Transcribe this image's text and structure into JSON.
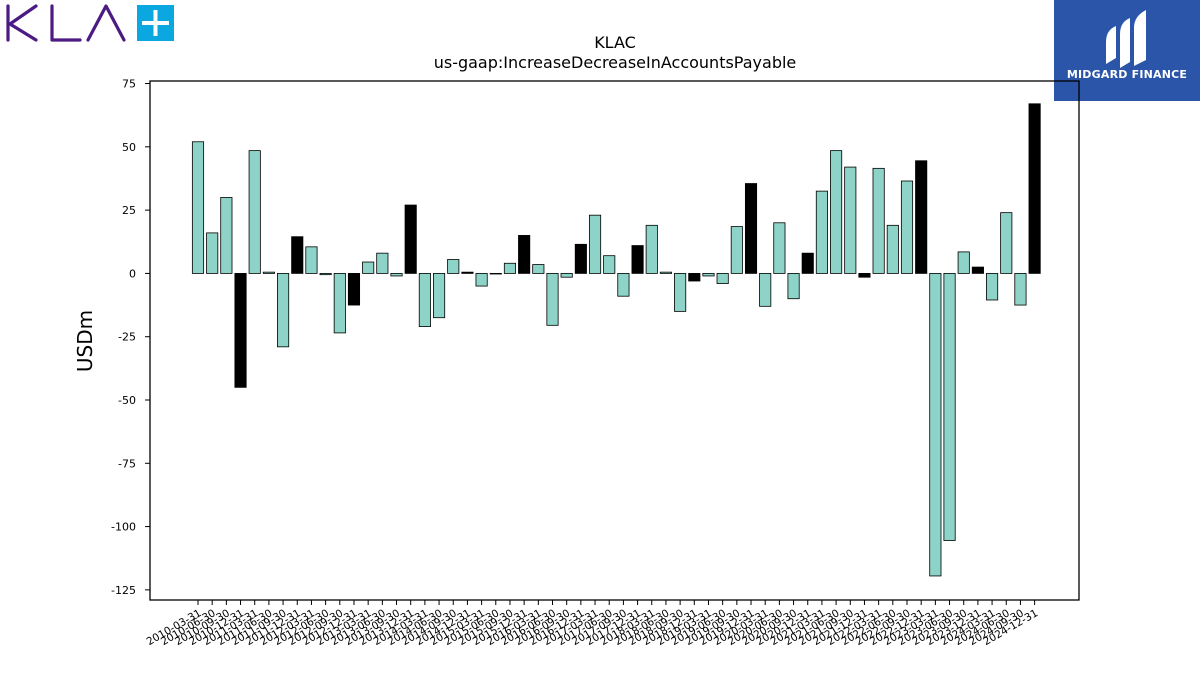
{
  "logos": {
    "left_brand": "KLA",
    "right_brand": "MIDGARD FINANCE",
    "kla_color": "#4b1a83",
    "kla_plus_color": "#0aa7e0",
    "midgard_bg": "#2b55a8"
  },
  "chart_data": {
    "type": "bar",
    "title": "KLAC",
    "subtitle": "us-gaap:IncreaseDecreaseInAccountsPayable",
    "xlabel": "",
    "ylabel": "USDm",
    "ylim": [
      -129,
      76
    ],
    "yticks": [
      75,
      50,
      25,
      0,
      -25,
      -50,
      -75,
      -100,
      -125
    ],
    "grid": false,
    "legend": "none",
    "colors": {
      "quarter": "#8dd3c7",
      "fiscal_year_end": "#000000"
    },
    "categories": [
      "2010-03-31",
      "2010-06-30",
      "2010-09-30",
      "2010-12-31",
      "2011-03-31",
      "2011-06-30",
      "2011-09-30",
      "2011-12-31",
      "2012-03-31",
      "2012-06-30",
      "2012-09-30",
      "2012-12-31",
      "2013-03-31",
      "2013-06-30",
      "2013-09-30",
      "2013-12-31",
      "2014-03-31",
      "2014-06-30",
      "2014-09-30",
      "2014-12-31",
      "2015-03-31",
      "2015-06-30",
      "2015-09-30",
      "2015-12-31",
      "2016-03-31",
      "2016-06-30",
      "2016-09-30",
      "2016-12-31",
      "2017-03-31",
      "2017-06-30",
      "2017-09-30",
      "2017-12-31",
      "2018-03-31",
      "2018-06-30",
      "2018-09-30",
      "2018-12-31",
      "2019-03-31",
      "2019-06-30",
      "2019-09-30",
      "2019-12-31",
      "2020-03-31",
      "2020-06-30",
      "2020-09-30",
      "2020-12-31",
      "2021-03-31",
      "2021-06-30",
      "2021-09-30",
      "2021-12-31",
      "2022-03-31",
      "2022-06-30",
      "2022-09-30",
      "2022-12-31",
      "2023-03-31",
      "2023-06-30",
      "2023-09-30",
      "2023-12-31",
      "2024-03-31",
      "2024-06-30",
      "2024-09-30",
      "2024-12-31"
    ],
    "values": [
      52,
      16,
      30,
      -45,
      48.5,
      0.5,
      -29,
      14.5,
      10.5,
      -0.5,
      -23.5,
      -12.5,
      4.5,
      8,
      -1,
      27,
      -21,
      -17.5,
      5.5,
      0.5,
      -5,
      0,
      4,
      15,
      3.5,
      -20.5,
      -1.5,
      11.5,
      23,
      7,
      -9,
      11,
      19,
      0.5,
      -15,
      -3,
      -1,
      -4,
      18.5,
      35.5,
      -13,
      20,
      -10,
      8,
      32.5,
      48.5,
      42,
      -1.5,
      41.5,
      19,
      36.5,
      44.5,
      -119.5,
      -105.5,
      8.5,
      2.5,
      -10.5,
      24,
      -12.5,
      67
    ],
    "highlight": [
      false,
      false,
      false,
      true,
      false,
      false,
      false,
      true,
      false,
      false,
      false,
      true,
      false,
      false,
      false,
      true,
      false,
      false,
      false,
      true,
      false,
      false,
      false,
      true,
      false,
      false,
      false,
      true,
      false,
      false,
      false,
      true,
      false,
      false,
      false,
      true,
      false,
      false,
      false,
      true,
      false,
      false,
      false,
      true,
      false,
      false,
      false,
      true,
      false,
      false,
      false,
      true,
      false,
      false,
      false,
      true,
      false,
      false,
      false,
      true
    ]
  }
}
